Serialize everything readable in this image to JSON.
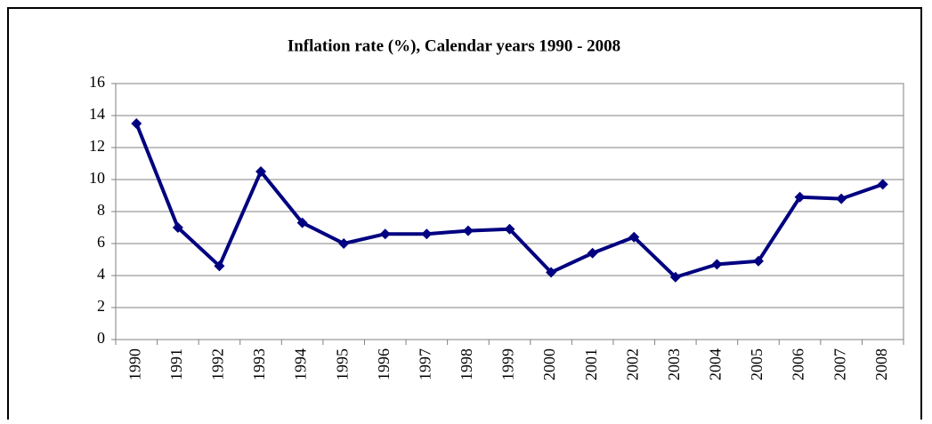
{
  "chart_data": {
    "type": "line",
    "title": "Inflation rate (%), Calendar years 1990 - 2008",
    "categories": [
      "1990",
      "1991",
      "1992",
      "1993",
      "1994",
      "1995",
      "1996",
      "1997",
      "1998",
      "1999",
      "2000",
      "2001",
      "2002",
      "2003",
      "2004",
      "2005",
      "2006",
      "2007",
      "2008"
    ],
    "values": [
      13.5,
      7.0,
      4.6,
      10.5,
      7.3,
      6.0,
      6.6,
      6.6,
      6.8,
      6.9,
      4.2,
      5.4,
      6.4,
      3.9,
      4.7,
      4.9,
      8.9,
      8.8,
      9.7
    ],
    "color": "#000080",
    "ylim": [
      0,
      16
    ],
    "yticks": [
      0,
      2,
      4,
      6,
      8,
      10,
      12,
      14,
      16
    ],
    "grid": true
  }
}
